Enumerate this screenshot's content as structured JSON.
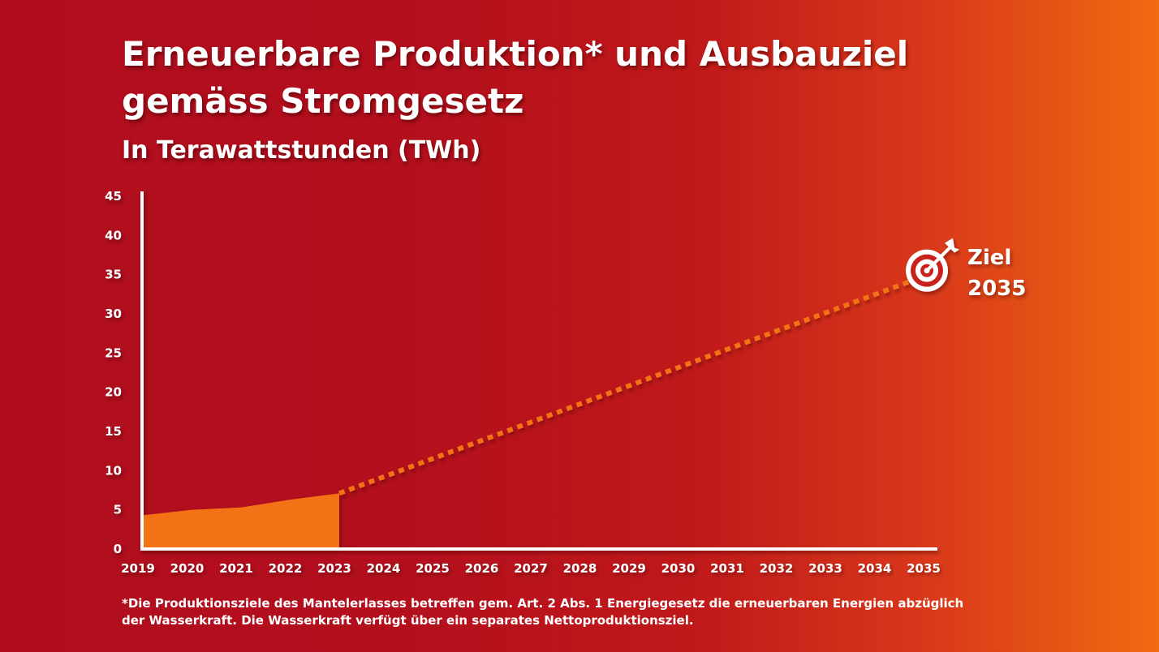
{
  "colors": {
    "axis": "#ffffff",
    "area_fill": "#f47216",
    "target_line": "#f47216",
    "text": "#ffffff"
  },
  "chart_data": {
    "type": "area",
    "title": "Erneuerbare Produktion* und Ausbauziel gemäss Stromgesetz",
    "subtitle": "In Terawattstunden (TWh)",
    "ylim": [
      0,
      45
    ],
    "y_ticks": [
      0,
      5,
      10,
      15,
      20,
      25,
      30,
      35,
      40,
      45
    ],
    "x": [
      "2019",
      "2020",
      "2021",
      "2022",
      "2023",
      "2024",
      "2025",
      "2026",
      "2027",
      "2028",
      "2029",
      "2030",
      "2031",
      "2032",
      "2033",
      "2034",
      "2035"
    ],
    "series": [
      {
        "name": "Erneuerbare Produktion",
        "style": "area",
        "x": [
          "2019",
          "2020",
          "2021",
          "2022",
          "2023"
        ],
        "values": [
          4.2,
          4.9,
          5.2,
          6.2,
          7.0
        ]
      },
      {
        "name": "Ausbauziel",
        "style": "dotted-line",
        "x": [
          "2023",
          "2035"
        ],
        "values": [
          7.0,
          35.0
        ]
      }
    ],
    "goal_marker": {
      "year": "2035",
      "value": 35,
      "icon": "target-icon",
      "label_line1": "Ziel",
      "label_line2": "2035"
    },
    "footnote": "*Die Produktionsziele des Mantelerlasses betreffen gem. Art. 2 Abs. 1 Energiegesetz die erneuerbaren Energien abzüglich der Wasserkraft. Die Wasserkraft verfügt über ein separates Nettoproduktionsziel."
  }
}
